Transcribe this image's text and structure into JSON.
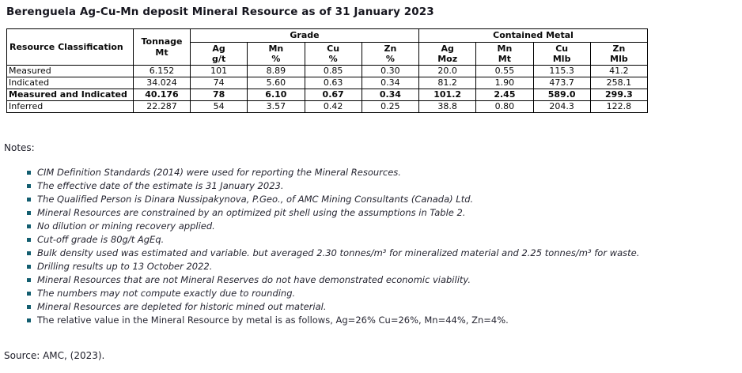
{
  "page": {
    "title": "Berenguela Ag-Cu-Mn deposit Mineral Resource as of 31 January 2023"
  },
  "colors": {
    "bullet_square": "#135e70",
    "table_border": "#000000",
    "title_text": "#16161f",
    "body_text": "#262632"
  },
  "table": {
    "corner_header": "Resource Classification",
    "tonnage_header": "Tonnage\nMt",
    "grade_group_header": "Grade",
    "contained_group_header": "Contained Metal",
    "sub_headers": [
      "Ag\ng/t",
      "Mn\n%",
      "Cu\n%",
      "Zn\n%",
      "Ag\nMoz",
      "Mn\nMt",
      "Cu\nMlb",
      "Zn\nMlb"
    ],
    "rows": [
      {
        "classification": "Measured",
        "tonnage": "6.152",
        "ag_gt": "101",
        "mn_pct": "8.89",
        "cu_pct": "0.85",
        "zn_pct": "0.30",
        "ag_moz": "20.0",
        "mn_mt": "0.55",
        "cu_mlb": "115.3",
        "zn_mlb": "41.2",
        "bold": false
      },
      {
        "classification": "Indicated",
        "tonnage": "34.024",
        "ag_gt": "74",
        "mn_pct": "5.60",
        "cu_pct": "0.63",
        "zn_pct": "0.34",
        "ag_moz": "81.2",
        "mn_mt": "1.90",
        "cu_mlb": "473.7",
        "zn_mlb": "258.1",
        "bold": false
      },
      {
        "classification": "Measured and Indicated",
        "tonnage": "40.176",
        "ag_gt": "78",
        "mn_pct": "6.10",
        "cu_pct": "0.67",
        "zn_pct": "0.34",
        "ag_moz": "101.2",
        "mn_mt": "2.45",
        "cu_mlb": "589.0",
        "zn_mlb": "299.3",
        "bold": true
      },
      {
        "classification": "Inferred",
        "tonnage": "22.287",
        "ag_gt": "54",
        "mn_pct": "3.57",
        "cu_pct": "0.42",
        "zn_pct": "0.25",
        "ag_moz": "38.8",
        "mn_mt": "0.80",
        "cu_mlb": "204.3",
        "zn_mlb": "122.8",
        "bold": false
      }
    ]
  },
  "notes": {
    "label": "Notes:",
    "items": [
      {
        "text": "CIM Definition Standards (2014) were used for reporting the Mineral Resources.",
        "italic": true
      },
      {
        "text": "The effective date of the estimate is 31 January 2023.",
        "italic": true
      },
      {
        "text": "The Qualified Person is Dinara Nussipakynova, P.Geo., of AMC Mining Consultants (Canada) Ltd.",
        "italic": true
      },
      {
        "text": "Mineral Resources are constrained by an optimized pit shell using the assumptions in Table 2.",
        "italic": true
      },
      {
        "text": "No dilution or mining recovery applied.",
        "italic": true
      },
      {
        "text": "Cut-off grade is 80g/t AgEq.",
        "italic": true
      },
      {
        "text": "Bulk density used was estimated and variable. but averaged 2.30 tonnes/m³ for mineralized material and 2.25 tonnes/m³ for waste.",
        "italic": true
      },
      {
        "text": "Drilling results up to 13 October 2022.",
        "italic": true
      },
      {
        "text": "Mineral Resources that are not Mineral Reserves do not have demonstrated economic viability.",
        "italic": true
      },
      {
        "text": "The numbers may not compute exactly due to rounding.",
        "italic": true
      },
      {
        "text": "Mineral Resources are depleted for historic mined out material.",
        "italic": true
      },
      {
        "text": "The relative value in the Mineral Resource by metal is as follows, Ag=26% Cu=26%, Mn=44%, Zn=4%.",
        "italic": false
      }
    ]
  },
  "source_line": "Source: AMC, (2023)."
}
